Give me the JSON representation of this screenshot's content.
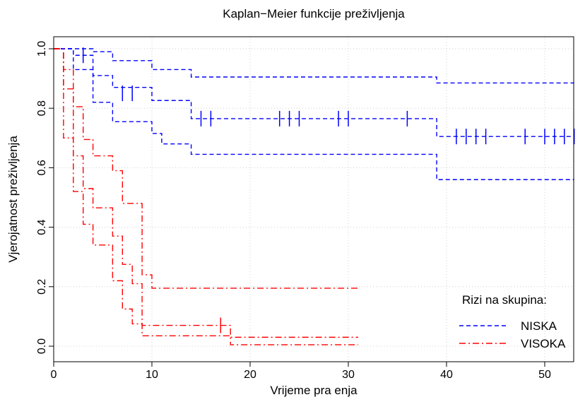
{
  "chart_data": {
    "type": "line",
    "title": "Kaplan−Meier funkcije preživljenja",
    "xlabel": "Vrijeme pra enja",
    "ylabel": "Vjerojatnost preživljenja",
    "xlim": [
      0,
      53
    ],
    "ylim": [
      0,
      1
    ],
    "xticks": [
      0,
      10,
      20,
      30,
      40,
      50
    ],
    "yticks": [
      0.0,
      0.2,
      0.4,
      0.6,
      0.8,
      1.0
    ],
    "xtick_labels": [
      "0",
      "10",
      "20",
      "30",
      "40",
      "50"
    ],
    "ytick_labels": [
      "0.0",
      "0.2",
      "0.4",
      "0.6",
      "0.8",
      "1.0"
    ],
    "grid": true,
    "legend": {
      "title": "Rizi na skupina:",
      "position": "bottom-right"
    },
    "series": [
      {
        "name": "NISKA",
        "color": "#0000ff",
        "dash": "dashed",
        "estimate": [
          [
            0,
            1.0
          ],
          [
            2,
            0.978
          ],
          [
            4,
            0.91
          ],
          [
            6,
            0.87
          ],
          [
            10,
            0.826
          ],
          [
            14,
            0.765
          ],
          [
            39,
            0.705
          ],
          [
            53,
            0.705
          ]
        ],
        "upper": [
          [
            0,
            1.0
          ],
          [
            4,
            0.99
          ],
          [
            6,
            0.96
          ],
          [
            10,
            0.93
          ],
          [
            14,
            0.905
          ],
          [
            39,
            0.885
          ],
          [
            53,
            0.885
          ]
        ],
        "lower": [
          [
            0,
            1.0
          ],
          [
            2,
            0.93
          ],
          [
            4,
            0.82
          ],
          [
            6,
            0.755
          ],
          [
            10,
            0.715
          ],
          [
            11,
            0.68
          ],
          [
            14,
            0.645
          ],
          [
            39,
            0.56
          ],
          [
            53,
            0.56
          ]
        ],
        "censored": [
          [
            3,
            0.978
          ],
          [
            7,
            0.85
          ],
          [
            8,
            0.85
          ],
          [
            15,
            0.765
          ],
          [
            16,
            0.765
          ],
          [
            23,
            0.765
          ],
          [
            24,
            0.765
          ],
          [
            25,
            0.765
          ],
          [
            29,
            0.765
          ],
          [
            30,
            0.765
          ],
          [
            36,
            0.765
          ],
          [
            41,
            0.705
          ],
          [
            42,
            0.705
          ],
          [
            43,
            0.705
          ],
          [
            44,
            0.705
          ],
          [
            48,
            0.705
          ],
          [
            50,
            0.705
          ],
          [
            51,
            0.705
          ],
          [
            52,
            0.705
          ],
          [
            53,
            0.705
          ]
        ]
      },
      {
        "name": "VISOKA",
        "color": "#ff0000",
        "dash": "dashdot",
        "estimate": [
          [
            0,
            1.0
          ],
          [
            1,
            0.865
          ],
          [
            2,
            0.64
          ],
          [
            3,
            0.53
          ],
          [
            4,
            0.465
          ],
          [
            6,
            0.37
          ],
          [
            7,
            0.275
          ],
          [
            8,
            0.21
          ],
          [
            9,
            0.07
          ],
          [
            18,
            0.03
          ],
          [
            31,
            0.03
          ]
        ],
        "upper": [
          [
            0,
            1.0
          ],
          [
            1,
            0.93
          ],
          [
            2,
            0.805
          ],
          [
            3,
            0.695
          ],
          [
            4,
            0.64
          ],
          [
            6,
            0.59
          ],
          [
            7,
            0.48
          ],
          [
            9,
            0.24
          ],
          [
            10,
            0.195
          ],
          [
            31,
            0.195
          ]
        ],
        "lower": [
          [
            0,
            1.0
          ],
          [
            1,
            0.7
          ],
          [
            2,
            0.52
          ],
          [
            3,
            0.41
          ],
          [
            4,
            0.34
          ],
          [
            6,
            0.22
          ],
          [
            7,
            0.125
          ],
          [
            8,
            0.075
          ],
          [
            9,
            0.035
          ],
          [
            18,
            0.005
          ],
          [
            31,
            0.005
          ]
        ],
        "censored": [
          [
            17,
            0.07
          ]
        ]
      }
    ]
  }
}
